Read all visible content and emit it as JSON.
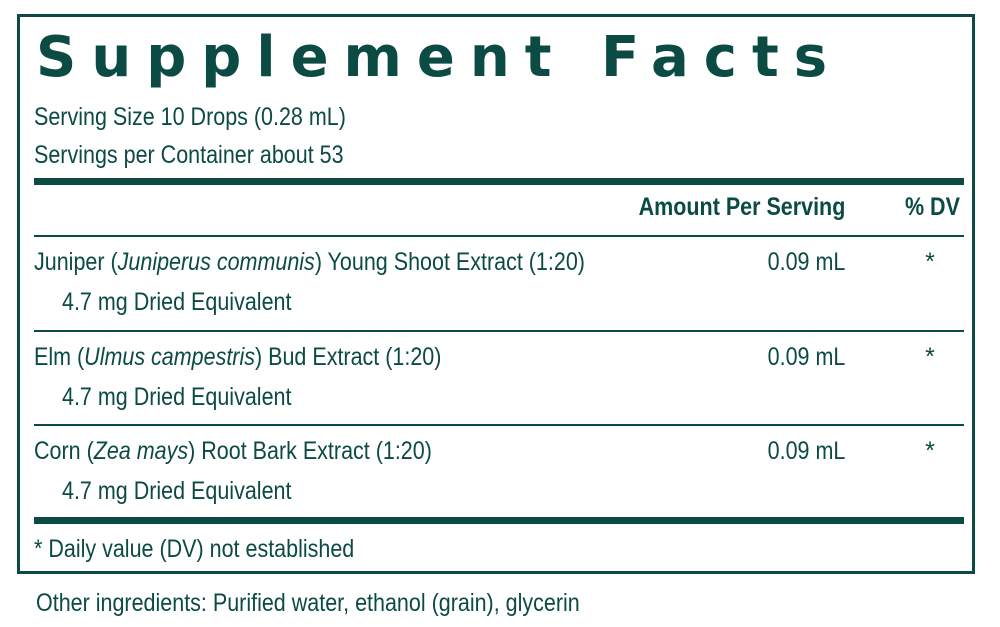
{
  "title": "Supplement Facts",
  "serving_size": "Serving Size 10 Drops (0.28 mL)",
  "servings_per_container": "Servings per Container about 53",
  "header": {
    "amount": "Amount Per Serving",
    "dv": "% DV"
  },
  "rows": [
    {
      "name_pre": "Juniper (",
      "latin": "Juniperus communis",
      "name_post": ") Young Shoot Extract (1:20)",
      "sub": "4.7 mg Dried Equivalent",
      "amount": "0.09 mL",
      "dv": "*"
    },
    {
      "name_pre": "Elm (",
      "latin": "Ulmus campestris",
      "name_post": ") Bud Extract (1:20)",
      "sub": "4.7 mg Dried Equivalent",
      "amount": "0.09 mL",
      "dv": "*"
    },
    {
      "name_pre": "Corn (",
      "latin": "Zea mays",
      "name_post": ") Root Bark Extract (1:20)",
      "sub": "4.7 mg Dried Equivalent",
      "amount": "0.09 mL",
      "dv": "*"
    }
  ],
  "footnote": "* Daily value (DV) not established",
  "other_ingredients": "Other ingredients: Purified water, ethanol (grain), glycerin",
  "colors": {
    "ink": "#0c4a44",
    "background": "#ffffff"
  }
}
